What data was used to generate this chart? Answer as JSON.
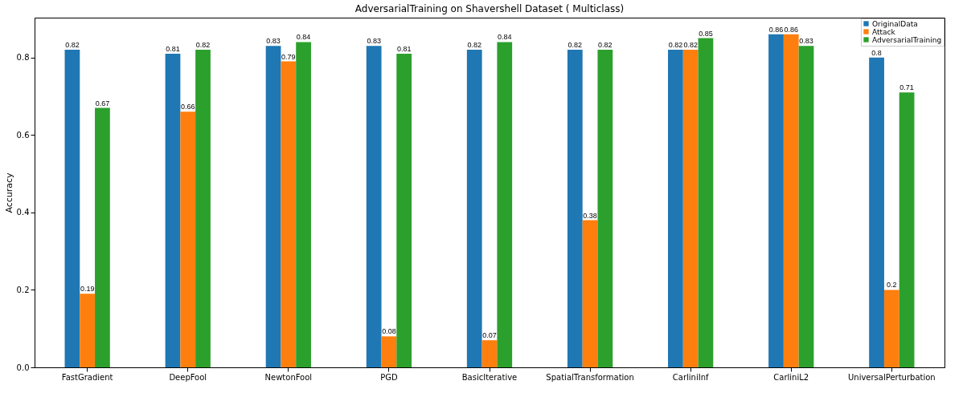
{
  "chart_data": {
    "type": "bar",
    "title": "AdversarialTraining on Shavershell Dataset ( Multiclass)",
    "ylabel": "Accuracy",
    "categories": [
      "FastGradient",
      "DeepFool",
      "NewtonFool",
      "PGD",
      "BasicIterative",
      "SpatialTransformation",
      "CarliniInf",
      "CarliniL2",
      "UniversalPerturbation"
    ],
    "series": [
      {
        "name": "OriginalData",
        "color": "#1f77b4",
        "values": [
          0.82,
          0.81,
          0.83,
          0.83,
          0.82,
          0.82,
          0.82,
          0.86,
          0.8
        ]
      },
      {
        "name": "Attack",
        "color": "#ff7f0e",
        "values": [
          0.19,
          0.66,
          0.79,
          0.08,
          0.07,
          0.38,
          0.82,
          0.86,
          0.2
        ]
      },
      {
        "name": "AdversarialTraining",
        "color": "#2ca02c",
        "values": [
          0.67,
          0.82,
          0.84,
          0.81,
          0.84,
          0.82,
          0.85,
          0.83,
          0.71
        ]
      }
    ],
    "ylim": [
      0,
      0.903
    ],
    "yticks": [
      {
        "value": 0,
        "label": "0.0"
      },
      0.2,
      0.4,
      0.6,
      0.8
    ],
    "grid": false,
    "legend": "top right",
    "data_labels": true
  }
}
